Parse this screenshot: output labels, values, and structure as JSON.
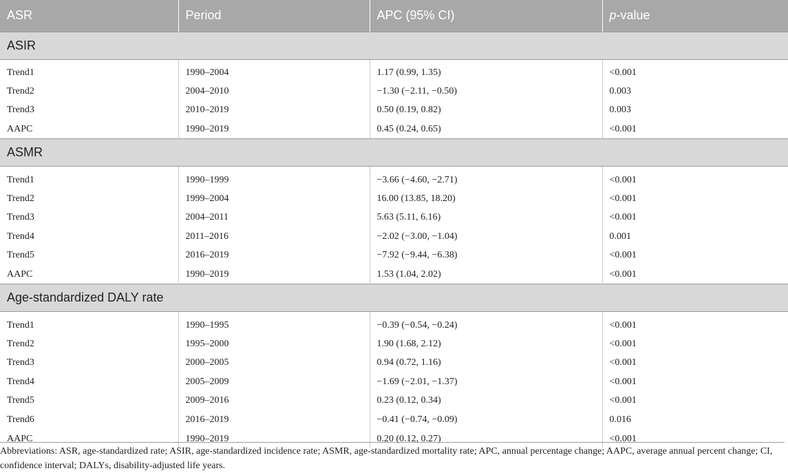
{
  "table": {
    "headers": {
      "asr": "ASR",
      "period": "Period",
      "apc": "APC (95% CI)",
      "p_italic": "p",
      "p_rest": "-value"
    },
    "sections": [
      {
        "title": "ASIR",
        "rows": [
          {
            "label": "Trend1",
            "period": "1990–2004",
            "apc": "1.17 (0.99, 1.35)",
            "p": "<0.001"
          },
          {
            "label": "Trend2",
            "period": "2004–2010",
            "apc": "−1.30 (−2.11, −0.50)",
            "p": "0.003"
          },
          {
            "label": "Trend3",
            "period": "2010–2019",
            "apc": "0.50 (0.19, 0.82)",
            "p": "0.003"
          },
          {
            "label": "AAPC",
            "period": "1990–2019",
            "apc": "0.45 (0.24, 0.65)",
            "p": "<0.001"
          }
        ]
      },
      {
        "title": "ASMR",
        "rows": [
          {
            "label": "Trend1",
            "period": "1990–1999",
            "apc": "−3.66 (−4.60, −2.71)",
            "p": "<0.001"
          },
          {
            "label": "Trend2",
            "period": "1999–2004",
            "apc": "16.00 (13.85, 18.20)",
            "p": "<0.001"
          },
          {
            "label": "Trend3",
            "period": "2004–2011",
            "apc": "5.63 (5.11, 6.16)",
            "p": "<0.001"
          },
          {
            "label": "Trend4",
            "period": "2011–2016",
            "apc": "−2.02 (−3.00, −1.04)",
            "p": "0.001"
          },
          {
            "label": "Trend5",
            "period": "2016–2019",
            "apc": "−7.92 (−9.44, −6.38)",
            "p": "<0.001"
          },
          {
            "label": "AAPC",
            "period": "1990–2019",
            "apc": "1.53 (1.04, 2.02)",
            "p": "<0.001"
          }
        ]
      },
      {
        "title": "Age-standardized DALY rate",
        "rows": [
          {
            "label": "Trend1",
            "period": "1990–1995",
            "apc": "−0.39 (−0.54, −0.24)",
            "p": "<0.001"
          },
          {
            "label": "Trend2",
            "period": "1995–2000",
            "apc": "1.90 (1.68, 2.12)",
            "p": "<0.001"
          },
          {
            "label": "Trend3",
            "period": "2000–2005",
            "apc": "0.94 (0.72, 1.16)",
            "p": "<0.001"
          },
          {
            "label": "Trend4",
            "period": "2005–2009",
            "apc": "−1.69 (−2.01, −1.37)",
            "p": "<0.001"
          },
          {
            "label": "Trend5",
            "period": "2009–2016",
            "apc": "0.23 (0.12, 0.34)",
            "p": "<0.001"
          },
          {
            "label": "Trend6",
            "period": "2016–2019",
            "apc": "−0.41 (−0.74, −0.09)",
            "p": "0.016"
          },
          {
            "label": "AAPC",
            "period": "1990–2019",
            "apc": "0.20 (0.12, 0.27)",
            "p": "<0.001"
          }
        ]
      }
    ]
  },
  "footnote": "Abbreviations: ASR, age-standardized rate; ASIR, age-standardized incidence rate; ASMR, age-standardized mortality rate; APC, annual percentage change; AAPC, average annual percent change; CI, confidence interval; DALYs, disability-adjusted life years."
}
